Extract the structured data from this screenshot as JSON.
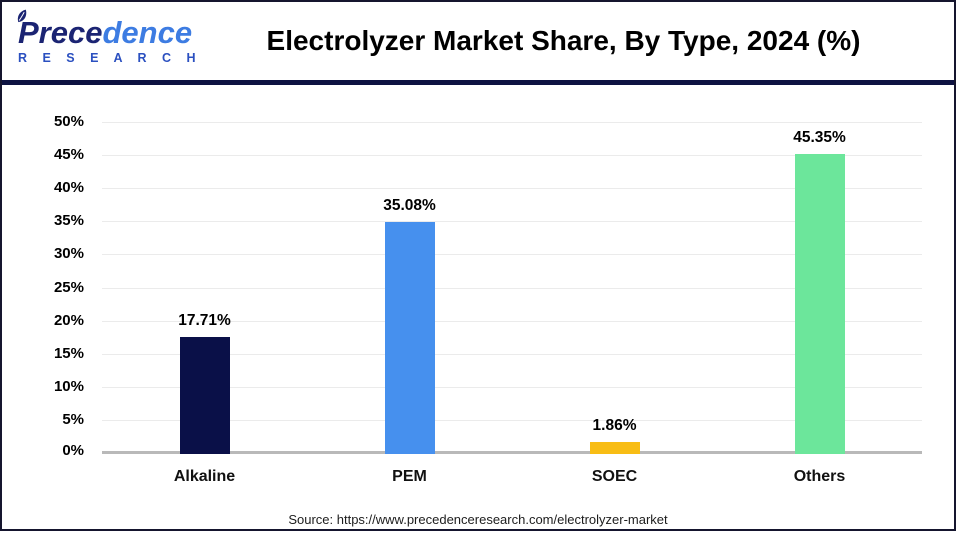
{
  "header": {
    "logo": {
      "name": "Precedence Research logo",
      "word_part1": "Prece",
      "word_part2": "dence",
      "subtext": "R E S E A R C H"
    },
    "title": "Electrolyzer Market Share, By Type, 2024 (%)"
  },
  "chart_data": {
    "type": "bar",
    "title": "Electrolyzer Market Share, By Type, 2024 (%)",
    "categories": [
      "Alkaline",
      "PEM",
      "SOEC",
      "Others"
    ],
    "values": [
      17.71,
      35.08,
      1.86,
      45.35
    ],
    "labels": [
      "17.71%",
      "35.08%",
      "1.86%",
      "45.35%"
    ],
    "bar_colors": [
      "#0a1048",
      "#4690ee",
      "#f8bd15",
      "#6ce69b"
    ],
    "xlabel": "",
    "ylabel": "",
    "ylim": [
      0,
      50
    ],
    "ytick_step": 5,
    "yticks": [
      "0%",
      "5%",
      "10%",
      "15%",
      "20%",
      "25%",
      "30%",
      "35%",
      "40%",
      "45%",
      "50%"
    ],
    "grid": true,
    "legend": "none"
  },
  "footer": {
    "source": "Source: https://www.precedenceresearch.com/electrolyzer-market"
  },
  "colors": {
    "frame_border": "#15152e",
    "header_rule": "#0e1342",
    "logo_navy": "#1b2473",
    "logo_blue": "#3d7ce2",
    "gridline": "#ebebeb",
    "axis_baseline": "#b9b9b9"
  }
}
